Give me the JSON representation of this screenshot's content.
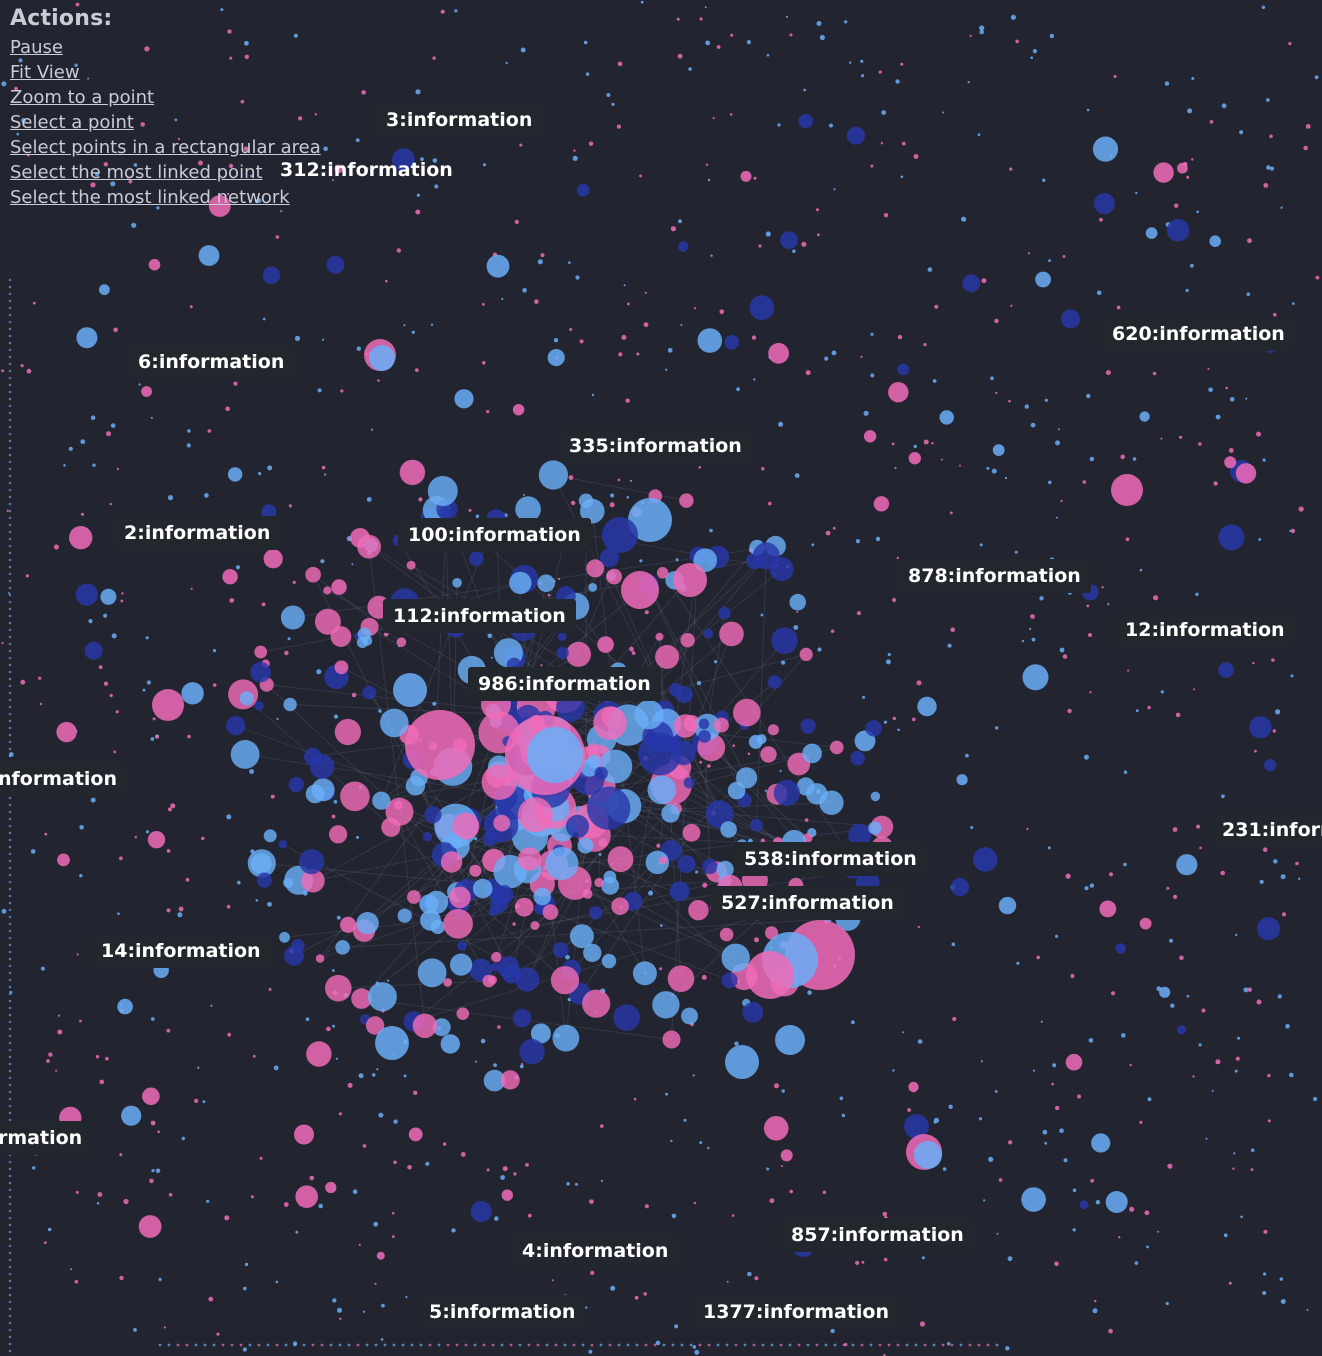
{
  "actions": {
    "title": "Actions:",
    "items": [
      {
        "name": "pause-action",
        "label": "Pause"
      },
      {
        "name": "fit-view-action",
        "label": "Fit View"
      },
      {
        "name": "zoom-to-point-action",
        "label": "Zoom to a point"
      },
      {
        "name": "select-point-action",
        "label": "Select a point"
      },
      {
        "name": "select-rect-action",
        "label": "Select points in a rectangular area"
      },
      {
        "name": "select-most-linked-point-action",
        "label": "Select the most linked point"
      },
      {
        "name": "select-most-linked-network-action",
        "label": "Select the most linked network"
      }
    ]
  },
  "labels": [
    {
      "id": "label-3",
      "text": "3:information"
    },
    {
      "id": "label-312",
      "text": "312:information"
    },
    {
      "id": "label-620",
      "text": "620:information"
    },
    {
      "id": "label-6",
      "text": "6:information"
    },
    {
      "id": "label-335",
      "text": "335:information"
    },
    {
      "id": "label-2",
      "text": "2:information"
    },
    {
      "id": "label-100",
      "text": "100:information"
    },
    {
      "id": "label-878",
      "text": "878:information"
    },
    {
      "id": "label-112",
      "text": "112:information"
    },
    {
      "id": "label-12",
      "text": "12:information"
    },
    {
      "id": "label-986",
      "text": "986:information"
    },
    {
      "id": "label-left-1",
      "text": "nformation"
    },
    {
      "id": "label-231",
      "text": "231:inform"
    },
    {
      "id": "label-538",
      "text": "538:information"
    },
    {
      "id": "label-527",
      "text": "527:information"
    },
    {
      "id": "label-14",
      "text": "14:information"
    },
    {
      "id": "label-left-2",
      "text": "rmation"
    },
    {
      "id": "label-857",
      "text": "857:information"
    },
    {
      "id": "label-4",
      "text": "4:information"
    },
    {
      "id": "label-5",
      "text": "5:information"
    },
    {
      "id": "label-1377",
      "text": "1377:information"
    }
  ],
  "colors": {
    "background": "#222530",
    "node_pink": "#f06bb8",
    "node_light_blue": "#6aaef7",
    "node_dark_blue": "#2737a8",
    "label_bg": "#22262d",
    "label_text": "#ffffff"
  }
}
